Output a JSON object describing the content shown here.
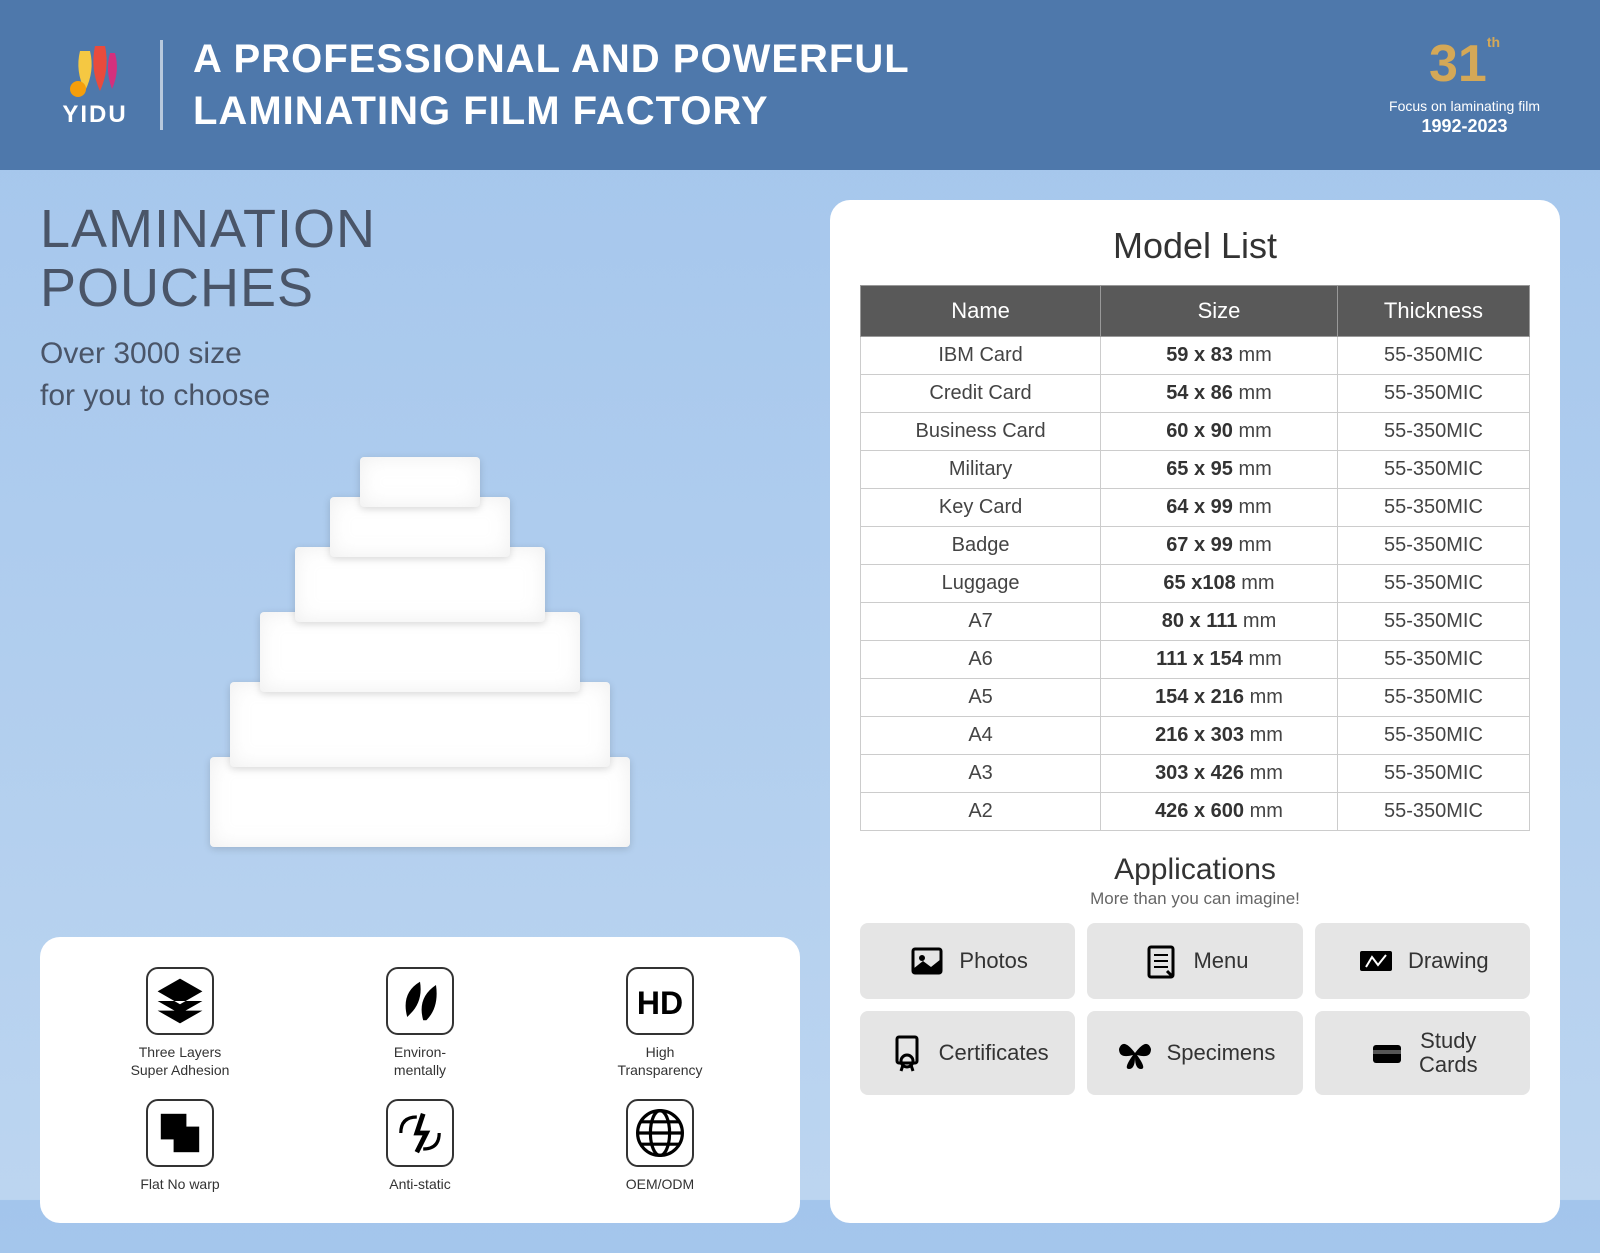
{
  "header": {
    "brand": "YIDU",
    "tagline_line1": "A PROFESSIONAL AND POWERFUL",
    "tagline_line2": "LAMINATING FILM FACTORY",
    "badge_number": "31",
    "badge_suffix": "th",
    "badge_focus": "Focus on laminating film",
    "badge_years": "1992-2023"
  },
  "hero": {
    "title_line1": "LAMINATION",
    "title_line2": "POUCHES",
    "sub_line1": "Over 3000 size",
    "sub_line2": "for you to choose"
  },
  "features": [
    {
      "label": "Three Layers\nSuper Adhesion",
      "icon": "layers"
    },
    {
      "label": "Environ-\nmentally",
      "icon": "leaf"
    },
    {
      "label": "High\nTransparency",
      "icon": "hd"
    },
    {
      "label": "Flat No warp",
      "icon": "flat"
    },
    {
      "label": "Anti-static",
      "icon": "antistatic"
    },
    {
      "label": "OEM/ODM",
      "icon": "globe"
    }
  ],
  "model_list": {
    "title": "Model List",
    "columns": [
      "Name",
      "Size",
      "Thickness"
    ],
    "rows": [
      {
        "name": "IBM Card",
        "dim": "59 x 83",
        "unit": "mm",
        "thickness": "55-350MIC"
      },
      {
        "name": "Credit Card",
        "dim": "54 x 86",
        "unit": "mm",
        "thickness": "55-350MIC"
      },
      {
        "name": "Business Card",
        "dim": "60 x 90",
        "unit": "mm",
        "thickness": "55-350MIC"
      },
      {
        "name": "Military",
        "dim": "65 x 95",
        "unit": "mm",
        "thickness": "55-350MIC"
      },
      {
        "name": "Key Card",
        "dim": "64 x 99",
        "unit": "mm",
        "thickness": "55-350MIC"
      },
      {
        "name": "Badge",
        "dim": "67 x 99",
        "unit": "mm",
        "thickness": "55-350MIC"
      },
      {
        "name": "Luggage",
        "dim": "65 x108",
        "unit": "mm",
        "thickness": "55-350MIC"
      },
      {
        "name": "A7",
        "dim": "80 x 111",
        "unit": "mm",
        "thickness": "55-350MIC"
      },
      {
        "name": "A6",
        "dim": "111 x 154",
        "unit": "mm",
        "thickness": "55-350MIC"
      },
      {
        "name": "A5",
        "dim": "154 x 216",
        "unit": "mm",
        "thickness": "55-350MIC"
      },
      {
        "name": "A4",
        "dim": "216 x 303",
        "unit": "mm",
        "thickness": "55-350MIC"
      },
      {
        "name": "A3",
        "dim": "303 x 426",
        "unit": "mm",
        "thickness": "55-350MIC"
      },
      {
        "name": "A2",
        "dim": "426 x 600",
        "unit": "mm",
        "thickness": "55-350MIC"
      }
    ]
  },
  "applications": {
    "title": "Applications",
    "subtitle": "More than you can imagine!",
    "items": [
      {
        "label": "Photos",
        "icon": "photo"
      },
      {
        "label": "Menu",
        "icon": "menu"
      },
      {
        "label": "Drawing",
        "icon": "drawing"
      },
      {
        "label": "Certificates",
        "icon": "cert"
      },
      {
        "label": "Specimens",
        "icon": "butterfly"
      },
      {
        "label": "Study\nCards",
        "icon": "cards"
      }
    ]
  },
  "colors": {
    "header_bg": "#4e78ab",
    "grad_top": "#a3c5ec",
    "grad_bot": "#bcd5f0",
    "table_header": "#595959",
    "app_bg": "#e5e5e5",
    "badge_gold": "#d4a857"
  }
}
